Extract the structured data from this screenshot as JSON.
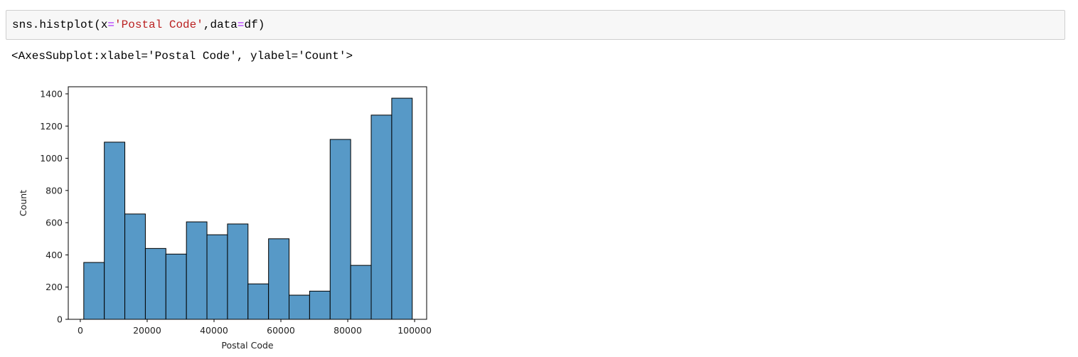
{
  "code_cell": {
    "segments": [
      "sns.histplot(x",
      "=",
      "'Postal Code'",
      ",data",
      "=",
      "df)"
    ]
  },
  "output_text": "<AxesSubplot:xlabel='Postal Code', ylabel='Count'>",
  "chart_data": {
    "type": "histogram",
    "x_label": "Postal Code",
    "y_label": "Count",
    "bins": [
      1040,
      7181,
      13322,
      19463,
      25604,
      31745,
      37886,
      44027,
      50168,
      56309,
      62450,
      68591,
      74732,
      80873,
      87014,
      93155,
      99296
    ],
    "values": [
      353,
      1100,
      654,
      440,
      405,
      605,
      525,
      592,
      220,
      500,
      150,
      175,
      1117,
      335,
      1268,
      1373
    ],
    "color": "#5799c7",
    "xlim": [
      -3600,
      103600
    ],
    "xticks": [
      0,
      20000,
      40000,
      60000,
      80000,
      100000
    ],
    "ylim": [
      0,
      1444
    ],
    "yticks": [
      0,
      200,
      400,
      600,
      800,
      1000,
      1200,
      1400
    ]
  }
}
